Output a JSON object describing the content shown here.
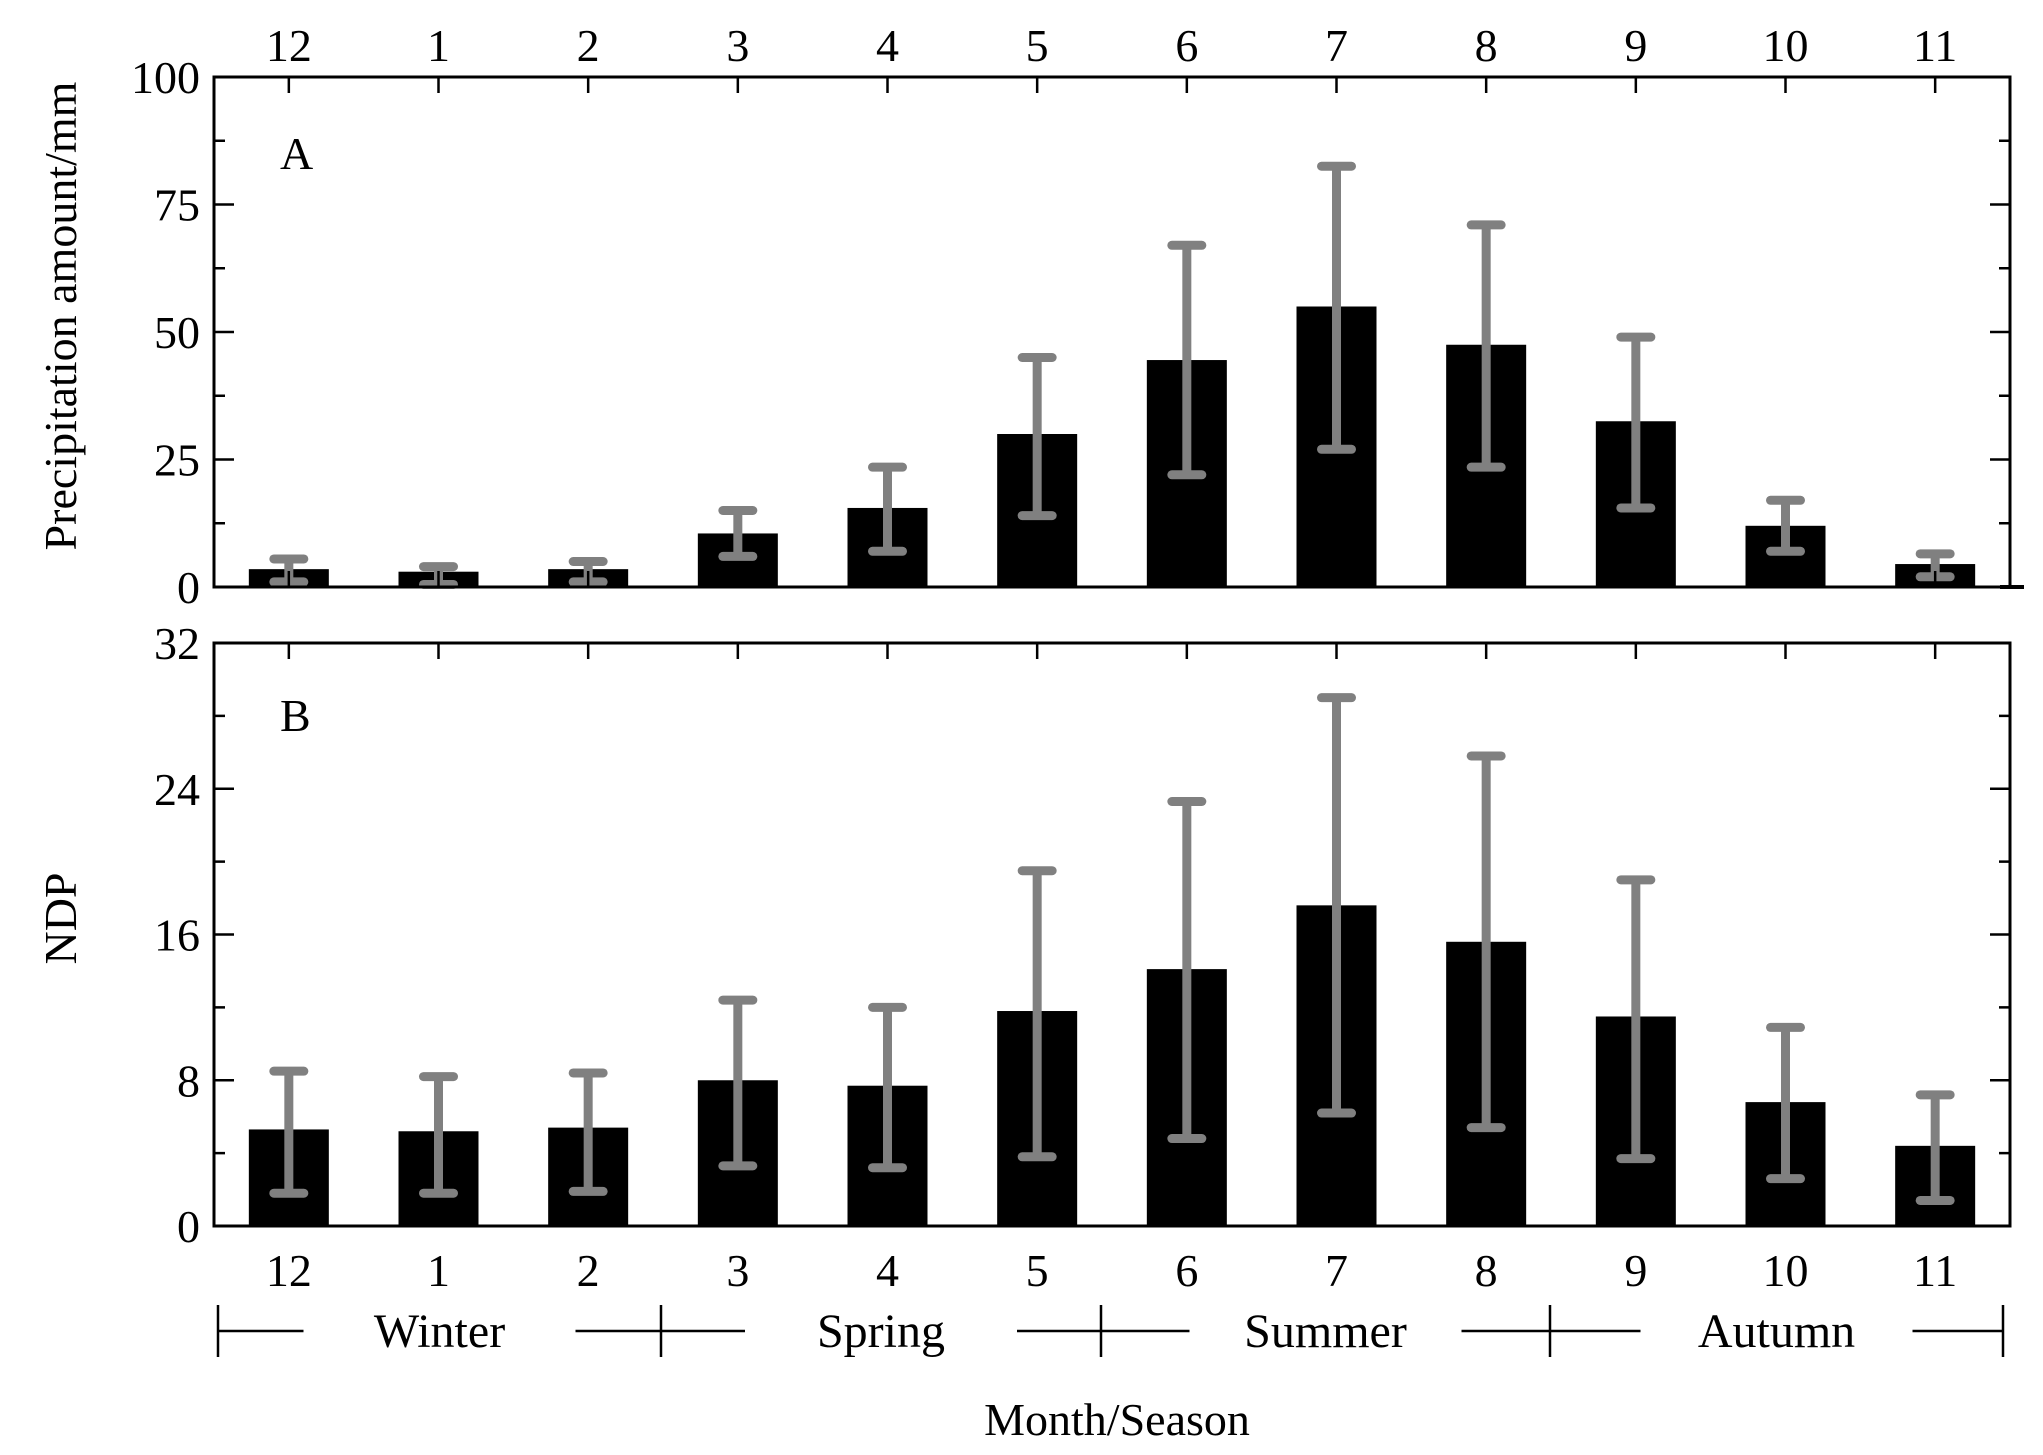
{
  "chart_data": [
    {
      "id": "A",
      "type": "bar",
      "panel_label": "A",
      "title": "",
      "xlabel": "",
      "ylabel": "Precipitation amount/mm",
      "ylim": [
        0,
        100
      ],
      "yticks": [
        0,
        25,
        50,
        75,
        100
      ],
      "yminor_step": 12.5,
      "categories": [
        "12",
        "1",
        "2",
        "3",
        "4",
        "5",
        "6",
        "7",
        "8",
        "9",
        "10",
        "11"
      ],
      "values": [
        3.5,
        3.0,
        3.5,
        10.5,
        15.5,
        30.0,
        44.5,
        55.0,
        47.5,
        32.5,
        12.0,
        4.5
      ],
      "error_bars": [
        {
          "low": 1.0,
          "high": 5.5
        },
        {
          "low": 0.5,
          "high": 4.0
        },
        {
          "low": 1.0,
          "high": 5.0
        },
        {
          "low": 6.0,
          "high": 15.0
        },
        {
          "low": 7.0,
          "high": 23.5
        },
        {
          "low": 14.0,
          "high": 45.0
        },
        {
          "low": 22.0,
          "high": 67.0
        },
        {
          "low": 27.0,
          "high": 82.5
        },
        {
          "low": 23.5,
          "high": 71.0
        },
        {
          "low": 15.5,
          "high": 49.0
        },
        {
          "low": 7.0,
          "high": 17.0
        },
        {
          "low": 2.0,
          "high": 6.5
        }
      ],
      "grid": false
    },
    {
      "id": "B",
      "type": "bar",
      "panel_label": "B",
      "title": "",
      "xlabel": "Month/Season",
      "ylabel": "NDP",
      "ylim": [
        0,
        32
      ],
      "yticks": [
        0,
        8,
        16,
        24,
        32
      ],
      "yminor_step": 4,
      "categories": [
        "12",
        "1",
        "2",
        "3",
        "4",
        "5",
        "6",
        "7",
        "8",
        "9",
        "10",
        "11"
      ],
      "values": [
        5.3,
        5.2,
        5.4,
        8.0,
        7.7,
        11.8,
        14.1,
        17.6,
        15.6,
        11.5,
        6.8,
        4.4
      ],
      "error_bars": [
        {
          "low": 1.8,
          "high": 8.5
        },
        {
          "low": 1.8,
          "high": 8.2
        },
        {
          "low": 1.9,
          "high": 8.4
        },
        {
          "low": 3.3,
          "high": 12.4
        },
        {
          "low": 3.2,
          "high": 12.0
        },
        {
          "low": 3.8,
          "high": 19.5
        },
        {
          "low": 4.8,
          "high": 23.3
        },
        {
          "low": 6.2,
          "high": 29.0
        },
        {
          "low": 5.4,
          "high": 25.8
        },
        {
          "low": 3.7,
          "high": 19.0
        },
        {
          "low": 2.6,
          "high": 10.9
        },
        {
          "low": 1.4,
          "high": 7.2
        }
      ],
      "grid": false
    }
  ],
  "seasons": [
    {
      "name": "Winter",
      "months": [
        "12",
        "1",
        "2"
      ]
    },
    {
      "name": "Spring",
      "months": [
        "3",
        "4",
        "5"
      ]
    },
    {
      "name": "Summer",
      "months": [
        "6",
        "7",
        "8"
      ]
    },
    {
      "name": "Autumn",
      "months": [
        "9",
        "10",
        "11"
      ]
    }
  ],
  "colors": {
    "bar": "#000000",
    "error_bar": "#808080",
    "axis": "#000000",
    "background": "#ffffff"
  }
}
